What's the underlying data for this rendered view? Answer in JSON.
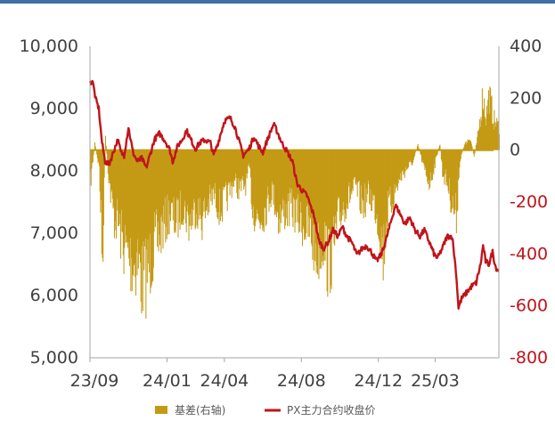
{
  "colors": {
    "basis": "#c49a14",
    "price": "#c0141b",
    "axis": "#a6a6a6",
    "top_rule": "#3f6ea8",
    "left_tick": "#404040",
    "right_tick_positive": "#404040",
    "right_tick_negative": "#c0141b"
  },
  "chart_data": {
    "type": "bar+line",
    "title": "",
    "x_ticks": [
      "23/09",
      "24/01",
      "24/04",
      "24/08",
      "24/12",
      "25/03"
    ],
    "left_axis": {
      "ylim": [
        5000,
        10000
      ],
      "ticks": [
        "10,000",
        "9,000",
        "8,000",
        "7,000",
        "6,000",
        "5,000"
      ]
    },
    "right_axis": {
      "ylim": [
        -800,
        400
      ],
      "ticks": [
        "400",
        "200",
        "0",
        "-200",
        "-400",
        "-600",
        "-800"
      ]
    },
    "legend": {
      "position": "bottom",
      "items": [
        {
          "name": "基差(右轴)",
          "marker": "bar",
          "color": "#c49a14"
        },
        {
          "name": "PX主力合约收盘价",
          "marker": "line",
          "color": "#c0141b"
        }
      ]
    },
    "series": [
      {
        "name": "PX主力合约收盘价",
        "axis": "left",
        "type": "line",
        "keypoints": [
          [
            "2023-09-01",
            9400
          ],
          [
            "2023-09-05",
            9450
          ],
          [
            "2023-09-10",
            9150
          ],
          [
            "2023-09-15",
            9000
          ],
          [
            "2023-09-20",
            8450
          ],
          [
            "2023-09-25",
            8150
          ],
          [
            "2023-10-01",
            8100
          ],
          [
            "2023-10-08",
            8300
          ],
          [
            "2023-10-15",
            8500
          ],
          [
            "2023-10-20",
            8300
          ],
          [
            "2023-10-25",
            8250
          ],
          [
            "2023-11-01",
            8700
          ],
          [
            "2023-11-08",
            8300
          ],
          [
            "2023-11-15",
            8150
          ],
          [
            "2023-11-22",
            8200
          ],
          [
            "2023-11-29",
            8050
          ],
          [
            "2023-12-05",
            8250
          ],
          [
            "2023-12-12",
            8500
          ],
          [
            "2023-12-20",
            8600
          ],
          [
            "2023-12-28",
            8500
          ],
          [
            "2024-01-05",
            8350
          ],
          [
            "2024-01-10",
            8150
          ],
          [
            "2024-01-18",
            8400
          ],
          [
            "2024-01-25",
            8500
          ],
          [
            "2024-02-01",
            8650
          ],
          [
            "2024-02-08",
            8500
          ],
          [
            "2024-02-15",
            8350
          ],
          [
            "2024-02-22",
            8450
          ],
          [
            "2024-03-01",
            8500
          ],
          [
            "2024-03-10",
            8450
          ],
          [
            "2024-03-15",
            8250
          ],
          [
            "2024-03-22",
            8450
          ],
          [
            "2024-04-01",
            8800
          ],
          [
            "2024-04-10",
            8850
          ],
          [
            "2024-04-18",
            8700
          ],
          [
            "2024-04-25",
            8450
          ],
          [
            "2024-05-01",
            8250
          ],
          [
            "2024-05-10",
            8350
          ],
          [
            "2024-05-18",
            8550
          ],
          [
            "2024-05-25",
            8400
          ],
          [
            "2024-06-01",
            8300
          ],
          [
            "2024-06-10",
            8550
          ],
          [
            "2024-06-18",
            8750
          ],
          [
            "2024-06-25",
            8600
          ],
          [
            "2024-07-01",
            8450
          ],
          [
            "2024-07-10",
            8300
          ],
          [
            "2024-07-18",
            8150
          ],
          [
            "2024-07-25",
            7800
          ],
          [
            "2024-08-01",
            7700
          ],
          [
            "2024-08-10",
            7600
          ],
          [
            "2024-08-15",
            7450
          ],
          [
            "2024-08-22",
            7250
          ],
          [
            "2024-08-28",
            6900
          ],
          [
            "2024-09-05",
            6750
          ],
          [
            "2024-09-12",
            6850
          ],
          [
            "2024-09-20",
            7050
          ],
          [
            "2024-09-28",
            6950
          ],
          [
            "2024-10-05",
            7100
          ],
          [
            "2024-10-12",
            6950
          ],
          [
            "2024-10-20",
            6850
          ],
          [
            "2024-10-28",
            6650
          ],
          [
            "2024-11-05",
            6750
          ],
          [
            "2024-11-12",
            6800
          ],
          [
            "2024-11-20",
            6700
          ],
          [
            "2024-11-28",
            6550
          ],
          [
            "2024-12-05",
            6650
          ],
          [
            "2024-12-12",
            6850
          ],
          [
            "2024-12-20",
            7150
          ],
          [
            "2024-12-28",
            7450
          ],
          [
            "2025-01-05",
            7300
          ],
          [
            "2025-01-12",
            7150
          ],
          [
            "2025-01-20",
            7250
          ],
          [
            "2025-01-28",
            7050
          ],
          [
            "2025-02-05",
            6950
          ],
          [
            "2025-02-12",
            7050
          ],
          [
            "2025-02-20",
            6850
          ],
          [
            "2025-02-28",
            6650
          ],
          [
            "2025-03-05",
            6600
          ],
          [
            "2025-03-12",
            6750
          ],
          [
            "2025-03-20",
            6950
          ],
          [
            "2025-03-28",
            6950
          ],
          [
            "2025-04-03",
            6400
          ],
          [
            "2025-04-07",
            5800
          ],
          [
            "2025-04-12",
            5950
          ],
          [
            "2025-04-20",
            6050
          ],
          [
            "2025-04-28",
            6150
          ],
          [
            "2025-05-05",
            6200
          ],
          [
            "2025-05-12",
            6500
          ],
          [
            "2025-05-16",
            6800
          ],
          [
            "2025-05-20",
            6550
          ],
          [
            "2025-05-25",
            6500
          ],
          [
            "2025-05-31",
            6700
          ],
          [
            "2025-06-05",
            6450
          ],
          [
            "2025-06-10",
            6400
          ]
        ]
      },
      {
        "name": "基差(右轴)",
        "axis": "right",
        "type": "bar",
        "keypoints": [
          [
            "2023-09-01",
            -150
          ],
          [
            "2023-09-08",
            30
          ],
          [
            "2023-09-15",
            -80
          ],
          [
            "2023-09-20",
            -500
          ],
          [
            "2023-09-25",
            50
          ],
          [
            "2023-10-01",
            -150
          ],
          [
            "2023-10-08",
            -300
          ],
          [
            "2023-10-15",
            -330
          ],
          [
            "2023-10-22",
            -420
          ],
          [
            "2023-11-01",
            -480
          ],
          [
            "2023-11-08",
            -520
          ],
          [
            "2023-11-15",
            -490
          ],
          [
            "2023-11-22",
            -600
          ],
          [
            "2023-11-29",
            -560
          ],
          [
            "2023-12-05",
            -500
          ],
          [
            "2023-12-12",
            -430
          ],
          [
            "2023-12-20",
            -380
          ],
          [
            "2023-12-28",
            -330
          ],
          [
            "2024-01-05",
            -280
          ],
          [
            "2024-01-15",
            -330
          ],
          [
            "2024-01-25",
            -250
          ],
          [
            "2024-02-05",
            -330
          ],
          [
            "2024-02-15",
            -260
          ],
          [
            "2024-02-25",
            -310
          ],
          [
            "2024-03-05",
            -250
          ],
          [
            "2024-03-15",
            -200
          ],
          [
            "2024-03-25",
            -270
          ],
          [
            "2024-04-05",
            -210
          ],
          [
            "2024-04-15",
            -140
          ],
          [
            "2024-04-25",
            -180
          ],
          [
            "2024-05-05",
            -150
          ],
          [
            "2024-05-10",
            -80
          ],
          [
            "2024-05-15",
            -260
          ],
          [
            "2024-05-25",
            -320
          ],
          [
            "2024-06-05",
            -260
          ],
          [
            "2024-06-15",
            -180
          ],
          [
            "2024-06-25",
            -300
          ],
          [
            "2024-07-05",
            -280
          ],
          [
            "2024-07-15",
            -260
          ],
          [
            "2024-07-25",
            -300
          ],
          [
            "2024-08-05",
            -340
          ],
          [
            "2024-08-15",
            -380
          ],
          [
            "2024-08-25",
            -470
          ],
          [
            "2024-09-05",
            -400
          ],
          [
            "2024-09-12",
            -520
          ],
          [
            "2024-09-20",
            -450
          ],
          [
            "2024-09-28",
            -310
          ],
          [
            "2024-10-05",
            -260
          ],
          [
            "2024-10-15",
            -210
          ],
          [
            "2024-10-25",
            -170
          ],
          [
            "2024-11-05",
            -250
          ],
          [
            "2024-11-15",
            -200
          ],
          [
            "2024-11-25",
            -250
          ],
          [
            "2024-12-01",
            -330
          ],
          [
            "2024-12-08",
            -470
          ],
          [
            "2024-12-15",
            -280
          ],
          [
            "2024-12-25",
            -200
          ],
          [
            "2025-01-05",
            -120
          ],
          [
            "2025-01-15",
            -80
          ],
          [
            "2025-01-25",
            -50
          ],
          [
            "2025-02-01",
            30
          ],
          [
            "2025-02-10",
            -80
          ],
          [
            "2025-02-20",
            -150
          ],
          [
            "2025-03-01",
            -50
          ],
          [
            "2025-03-08",
            30
          ],
          [
            "2025-03-12",
            -100
          ],
          [
            "2025-03-20",
            -150
          ],
          [
            "2025-03-28",
            -250
          ],
          [
            "2025-04-03",
            -300
          ],
          [
            "2025-04-08",
            -60
          ],
          [
            "2025-04-15",
            20
          ],
          [
            "2025-04-25",
            60
          ],
          [
            "2025-05-01",
            -30
          ],
          [
            "2025-05-08",
            80
          ],
          [
            "2025-05-15",
            250
          ],
          [
            "2025-05-20",
            150
          ],
          [
            "2025-05-25",
            250
          ],
          [
            "2025-06-01",
            140
          ],
          [
            "2025-06-10",
            100
          ]
        ]
      }
    ]
  }
}
